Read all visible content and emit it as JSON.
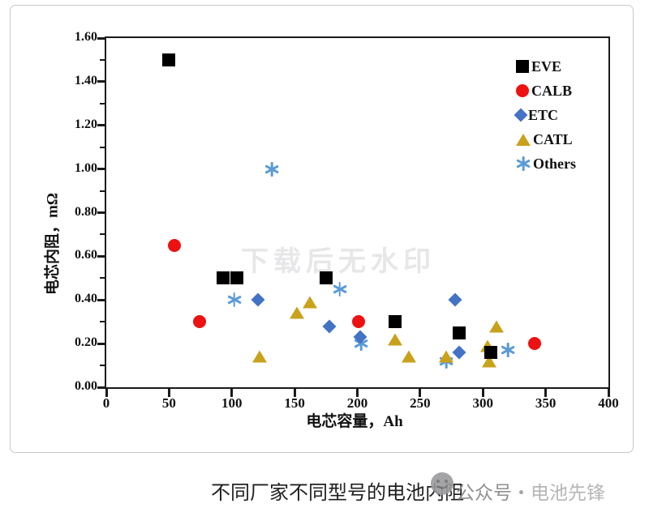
{
  "watermark": {
    "text": "下载后无水印"
  },
  "caption": {
    "text": "不同厂家不同型号的电池内阻",
    "account_prefix": "公众号",
    "separator": "・",
    "account_name": "电池先锋"
  },
  "chart_data": {
    "type": "scatter",
    "title": "",
    "xlabel": "电芯容量，Ah",
    "ylabel": "电芯内阻，mΩ",
    "xlim": [
      0,
      400
    ],
    "ylim": [
      0,
      1.6
    ],
    "x_ticks": [
      "0",
      "50",
      "100",
      "150",
      "200",
      "250",
      "300",
      "350",
      "400"
    ],
    "y_ticks": [
      "0.00",
      "0.20",
      "0.40",
      "0.60",
      "0.80",
      "1.00",
      "1.20",
      "1.40",
      "1.60"
    ],
    "y_minor_step": 0.1,
    "grid": false,
    "legend_position": "top-right-inside",
    "series": [
      {
        "name": "EVE",
        "marker": "square",
        "color": "#000000",
        "points": [
          [
            50,
            1.5
          ],
          [
            93,
            0.5
          ],
          [
            104,
            0.5
          ],
          [
            175,
            0.5
          ],
          [
            230,
            0.3
          ],
          [
            281,
            0.25
          ],
          [
            306,
            0.16
          ]
        ]
      },
      {
        "name": "CALB",
        "marker": "circle",
        "color": "#ee1111",
        "points": [
          [
            54,
            0.65
          ],
          [
            74,
            0.3
          ],
          [
            201,
            0.3
          ],
          [
            341,
            0.2
          ]
        ]
      },
      {
        "name": "ETC",
        "marker": "diamond",
        "color": "#4472c4",
        "points": [
          [
            121,
            0.4
          ],
          [
            178,
            0.28
          ],
          [
            202,
            0.23
          ],
          [
            278,
            0.4
          ],
          [
            281,
            0.16
          ]
        ]
      },
      {
        "name": "CATL",
        "marker": "triangle",
        "color": "#c9a21b",
        "points": [
          [
            122,
            0.14
          ],
          [
            152,
            0.34
          ],
          [
            162,
            0.39
          ],
          [
            230,
            0.22
          ],
          [
            241,
            0.14
          ],
          [
            271,
            0.14
          ],
          [
            304,
            0.19
          ],
          [
            305,
            0.12
          ],
          [
            311,
            0.28
          ]
        ]
      },
      {
        "name": "Others",
        "marker": "asterisk",
        "color": "#5b9bd5",
        "points": [
          [
            102,
            0.4
          ],
          [
            132,
            1.0
          ],
          [
            186,
            0.45
          ],
          [
            203,
            0.2
          ],
          [
            271,
            0.12
          ],
          [
            320,
            0.17
          ]
        ]
      }
    ]
  }
}
